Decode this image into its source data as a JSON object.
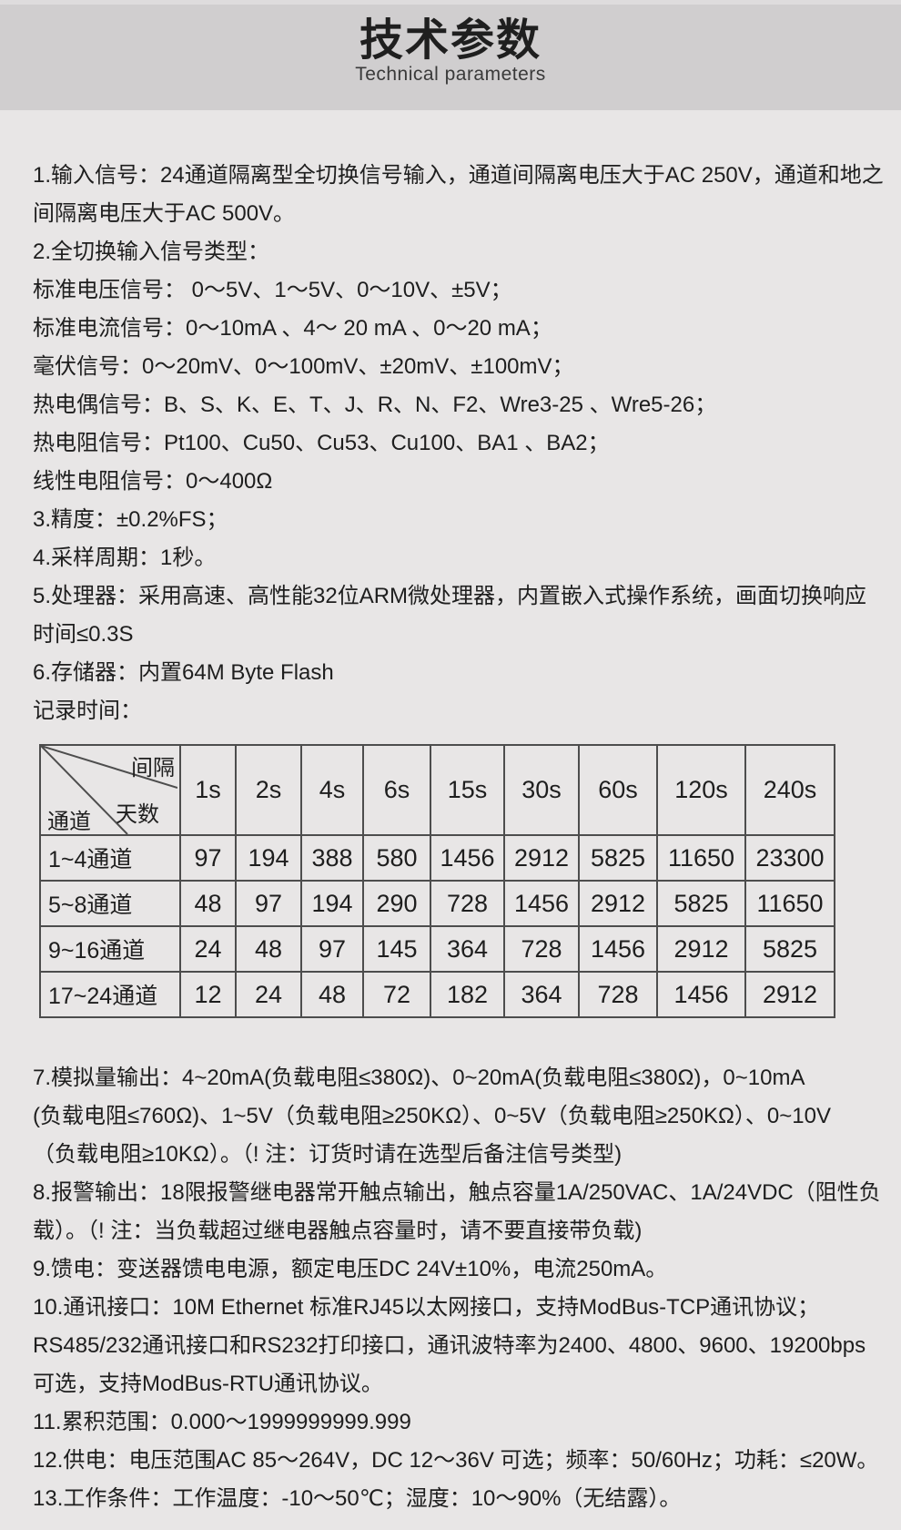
{
  "header": {
    "title": "技术参数",
    "subtitle": "Technical parameters"
  },
  "specs_top_lines": [
    "1.输入信号：24通道隔离型全切换信号输入，通道间隔离电压大于AC 250V，通道和地之",
    "间隔离电压大于AC 500V。",
    "2.全切换输入信号类型：",
    "标准电压信号： 0～5V、1～5V、0～10V、±5V；",
    "标准电流信号：0～10mA 、4～ 20 mA 、0～20 mA；",
    "毫伏信号：0～20mV、0～100mV、±20mV、±100mV；",
    "热电偶信号：B、S、K、E、T、J、R、N、F2、Wre3-25 、Wre5-26；",
    "热电阻信号：Pt100、Cu50、Cu53、Cu100、BA1 、BA2；",
    "线性电阻信号：0～400Ω",
    "3.精度：±0.2%FS；",
    "4.采样周期：1秒。",
    "5.处理器：采用高速、高性能32位ARM微处理器，内置嵌入式操作系统，画面切换响应",
    "时间≤0.3S",
    "6.存储器：内置64M Byte Flash",
    "记录时间："
  ],
  "record_table": {
    "corner": {
      "top_label": "间隔",
      "middle_label": "天数",
      "bottom_label": "通道"
    },
    "interval_columns": [
      "1s",
      "2s",
      "4s",
      "6s",
      "15s",
      "30s",
      "60s",
      "120s",
      "240s"
    ],
    "rows": [
      {
        "channel": "1~4通道",
        "days": [
          "97",
          "194",
          "388",
          "580",
          "1456",
          "2912",
          "5825",
          "11650",
          "23300"
        ]
      },
      {
        "channel": "5~8通道",
        "days": [
          "48",
          "97",
          "194",
          "290",
          "728",
          "1456",
          "2912",
          "5825",
          "11650"
        ]
      },
      {
        "channel": "9~16通道",
        "days": [
          "24",
          "48",
          "97",
          "145",
          "364",
          "728",
          "1456",
          "2912",
          "5825"
        ]
      },
      {
        "channel": "17~24通道",
        "days": [
          "12",
          "24",
          "48",
          "72",
          "182",
          "364",
          "728",
          "1456",
          "2912"
        ]
      }
    ]
  },
  "specs_bottom_lines": [
    "7.模拟量输出：4~20mA(负载电阻≤380Ω)、0~20mA(负载电阻≤380Ω)，0~10mA",
    "(负载电阻≤760Ω)、1~5V（负载电阻≥250KΩ）、0~5V（负载电阻≥250KΩ）、0~10V",
    "（负载电阻≥10KΩ）。（! 注：订货时请在选型后备注信号类型)",
    "8.报警输出：18限报警继电器常开触点输出，触点容量1A/250VAC、1A/24VDC（阻性负",
    "载）。（! 注：当负载超过继电器触点容量时，请不要直接带负载)",
    "9.馈电：变送器馈电电源，额定电压DC 24V±10%，电流250mA。",
    "10.通讯接口：10M Ethernet 标准RJ45以太网接口，支持ModBus-TCP通讯协议；",
    "RS485/232通讯接口和RS232打印接口，通讯波特率为2400、4800、9600、19200bps",
    "可选，支持ModBus-RTU通讯协议。",
    "11.累积范围：0.000～1999999999.999",
    "12.供电：电压范围AC 85～264V，DC 12～36V 可选；频率：50/60Hz；功耗：≤20W。",
    "13.工作条件：工作温度：-10～50℃；湿度：10～90%（无结露）。"
  ],
  "colors": {
    "page_bg": "#e8e6e6",
    "band_bg": "#d0cecf",
    "top_strip_bg": "#dedcdd",
    "text": "#1e1e1e",
    "table_border": "#4d4d4d"
  }
}
